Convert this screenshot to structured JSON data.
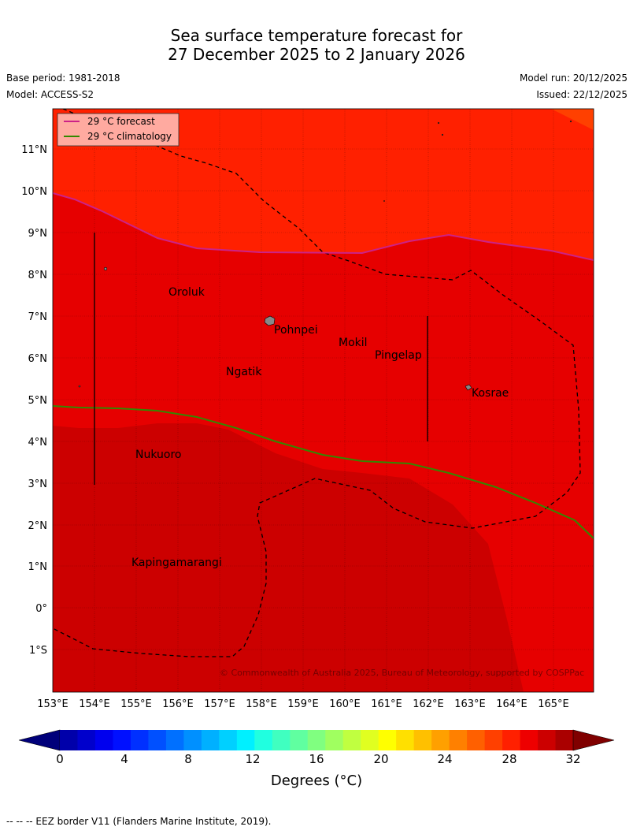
{
  "title_line1": "Sea surface temperature forecast for",
  "title_line2": "27 December 2025 to 2 January 2026",
  "base_period": "Base period: 1981-2018",
  "model": "Model: ACCESS-S2",
  "model_run": "Model run: 20/12/2025",
  "issued": "Issued: 22/12/2025",
  "legend": {
    "forecast": "29 °C  forecast",
    "climatology": "29 °C  climatology",
    "forecast_color": "#cc2288",
    "climatology_color": "#338800"
  },
  "copyright": "© Commonwealth of Australia 2025, Bureau of Meteorology, supported by COSPPac",
  "lat_labels": [
    "11°N",
    "10°N",
    "9°N",
    "8°N",
    "7°N",
    "6°N",
    "5°N",
    "4°N",
    "3°N",
    "2°N",
    "1°N",
    "0°",
    "1°S"
  ],
  "lon_labels": [
    "153°E",
    "154°E",
    "155°E",
    "156°E",
    "157°E",
    "158°E",
    "159°E",
    "160°E",
    "161°E",
    "162°E",
    "163°E",
    "164°E",
    "165°E"
  ],
  "places": {
    "oroluk": "Oroluk",
    "pohnpei": "Pohnpei",
    "mokil": "Mokil",
    "pingelap": "Pingelap",
    "ngatik": "Ngatik",
    "kosrae": "Kosrae",
    "nukuoro": "Nukuoro",
    "kapingamarangi": "Kapingamarangi"
  },
  "colorbar": {
    "ticks": [
      "0",
      "4",
      "8",
      "12",
      "16",
      "20",
      "24",
      "28",
      "32"
    ],
    "title": "Degrees (°C)",
    "colors": [
      "#0000aa",
      "#0000cc",
      "#0000ee",
      "#0010ff",
      "#0030ff",
      "#0050ff",
      "#0070ff",
      "#0090ff",
      "#00b0ff",
      "#00d0ff",
      "#00f0ff",
      "#20ffe0",
      "#40ffc0",
      "#60ffa0",
      "#80ff80",
      "#a0ff60",
      "#c0ff40",
      "#e0ff20",
      "#ffff00",
      "#ffe000",
      "#ffc000",
      "#ffa000",
      "#ff8000",
      "#ff6000",
      "#ff4000",
      "#ff2000",
      "#ee0000",
      "#cc0000",
      "#aa0000"
    ],
    "under_color": "#00007a",
    "over_color": "#800000"
  },
  "sst_colors": {
    "band_31_32": "#cc0000",
    "band_30_31": "#e60000",
    "band_29_30": "#ff2000",
    "band_28_29": "#ff4000"
  },
  "footer": "--  --  -- EEZ border V11 (Flanders Marine Institute, 2019)."
}
